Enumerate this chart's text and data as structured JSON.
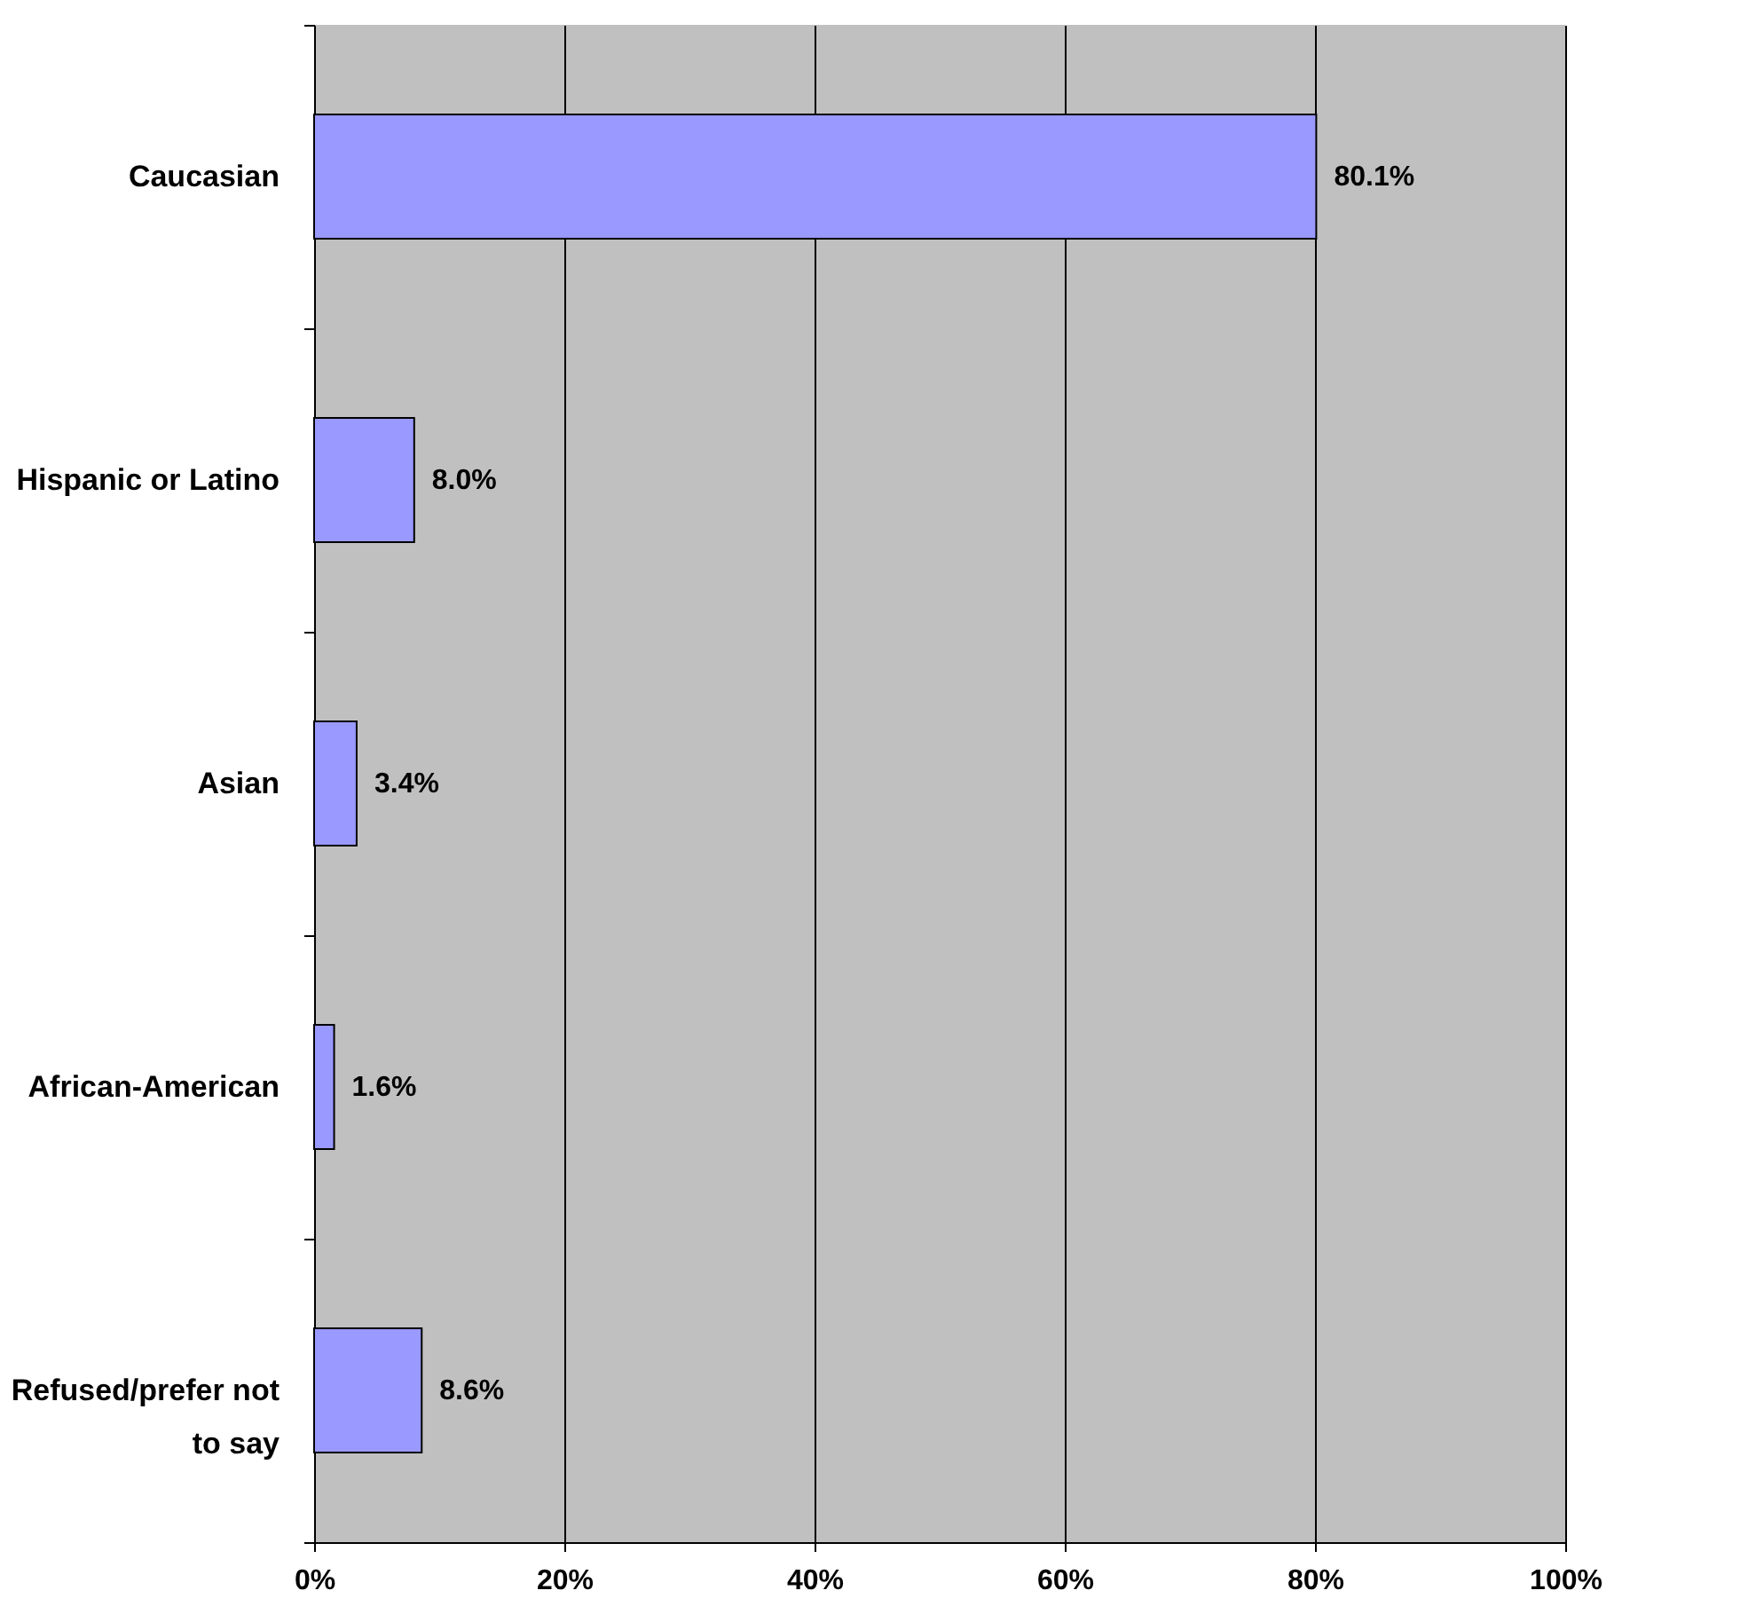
{
  "chart_data": {
    "type": "bar",
    "orientation": "horizontal",
    "categories": [
      "Caucasian",
      "Hispanic or Latino",
      "Asian",
      "African-American",
      "Refused/prefer not to say"
    ],
    "values": [
      80.1,
      8.0,
      3.4,
      1.6,
      8.6
    ],
    "value_labels": [
      "80.1%",
      "8.0%",
      "3.4%",
      "1.6%",
      "8.6%"
    ],
    "color": "#9999ff",
    "xlim": [
      0,
      100
    ],
    "xticks": [
      {
        "value": 0,
        "label": "0%"
      },
      {
        "value": 20,
        "label": "20%"
      },
      {
        "value": 40,
        "label": "40%"
      },
      {
        "value": 60,
        "label": "60%"
      },
      {
        "value": 80,
        "label": "80%"
      },
      {
        "value": 100,
        "label": "100%"
      }
    ],
    "grid": "x"
  }
}
